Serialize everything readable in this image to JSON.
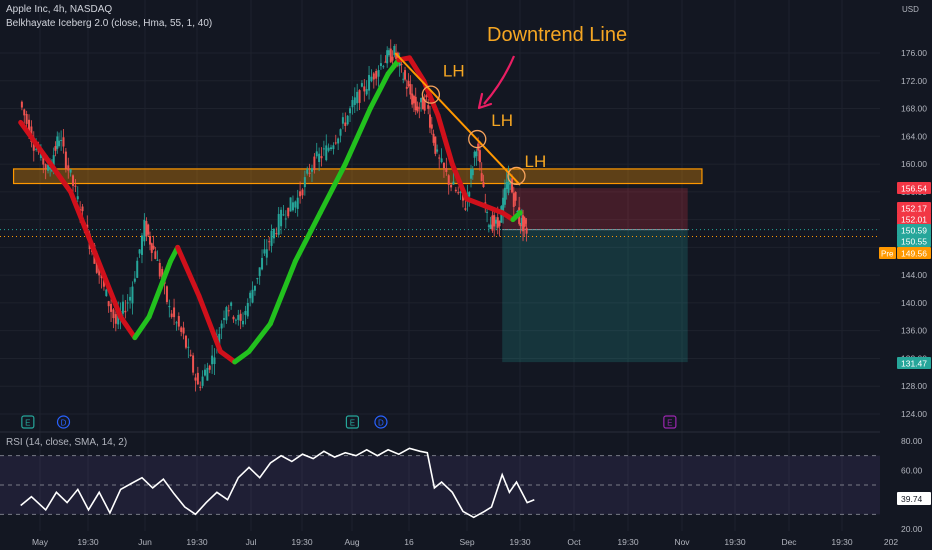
{
  "header": {
    "symbol_line": "Apple Inc, 4h, NASDAQ",
    "indicator_line": "Belkhayate Iceberg 2.0 (close, Hma, 55, 1, 40)",
    "currency": "USD"
  },
  "annotations": {
    "trend_title": "Downtrend Line",
    "lh_labels": [
      "LH",
      "LH",
      "LH"
    ]
  },
  "events": [
    "E",
    "D",
    "E",
    "D",
    "E"
  ],
  "rsi_panel": {
    "label": "RSI (14, close, SMA, 14, 2)",
    "value": "39.74"
  },
  "price_tags": [
    {
      "text": "156.54",
      "price": 156.54,
      "color": "#f23645"
    },
    {
      "text": "152.17",
      "price": 152.17,
      "color": "#f23645"
    },
    {
      "text": "152.01",
      "price": 152.01,
      "color": "#f23645"
    },
    {
      "text": "150.59",
      "price": 150.59,
      "color": "#26a69a"
    },
    {
      "text": "150.55",
      "price": 150.55,
      "color": "#26a69a"
    },
    {
      "text": "149.56",
      "price": 149.56,
      "color": "#ff9800",
      "prefix": "Pre"
    },
    {
      "text": "131.47",
      "price": 131.47,
      "color": "#26a69a"
    }
  ],
  "chart_data": {
    "type": "line",
    "y_ticks": [
      124,
      128,
      132,
      136,
      140,
      144,
      148,
      152,
      156,
      160,
      164,
      168,
      172,
      176
    ],
    "y_tick_labels": [
      "124.00",
      "128.00",
      "132.00",
      "136.00",
      "140.00",
      "144.00",
      "148.00",
      "152.00",
      "156.00",
      "160.00",
      "164.00",
      "168.00",
      "172.00",
      "176.00"
    ],
    "ylim": [
      121,
      180
    ],
    "x_tick_labels": [
      "May",
      "19:30",
      "Jun",
      "19:30",
      "Jul",
      "19:30",
      "Aug",
      "16",
      "Sep",
      "19:30",
      "Oct",
      "19:30",
      "Nov",
      "19:30",
      "Dec",
      "19:30",
      "202"
    ],
    "close": [
      {
        "date": "2023-05-01",
        "p": 169
      },
      {
        "date": "2023-05-05",
        "p": 163
      },
      {
        "date": "2023-05-09",
        "p": 159
      },
      {
        "date": "2023-05-12",
        "p": 164
      },
      {
        "date": "2023-05-16",
        "p": 157
      },
      {
        "date": "2023-05-20",
        "p": 150
      },
      {
        "date": "2023-05-24",
        "p": 143
      },
      {
        "date": "2023-05-28",
        "p": 137
      },
      {
        "date": "2023-06-01",
        "p": 141
      },
      {
        "date": "2023-06-05",
        "p": 151
      },
      {
        "date": "2023-06-08",
        "p": 147
      },
      {
        "date": "2023-06-12",
        "p": 139
      },
      {
        "date": "2023-06-16",
        "p": 135
      },
      {
        "date": "2023-06-20",
        "p": 128
      },
      {
        "date": "2023-06-24",
        "p": 132
      },
      {
        "date": "2023-06-28",
        "p": 140
      },
      {
        "date": "2023-07-02",
        "p": 137
      },
      {
        "date": "2023-07-06",
        "p": 143
      },
      {
        "date": "2023-07-10",
        "p": 149
      },
      {
        "date": "2023-07-14",
        "p": 153
      },
      {
        "date": "2023-07-18",
        "p": 155
      },
      {
        "date": "2023-07-22",
        "p": 160
      },
      {
        "date": "2023-07-26",
        "p": 162
      },
      {
        "date": "2023-07-30",
        "p": 165
      },
      {
        "date": "2023-08-03",
        "p": 169
      },
      {
        "date": "2023-08-07",
        "p": 172
      },
      {
        "date": "2023-08-11",
        "p": 175
      },
      {
        "date": "2023-08-14",
        "p": 176
      },
      {
        "date": "2023-08-17",
        "p": 172
      },
      {
        "date": "2023-08-20",
        "p": 168
      },
      {
        "date": "2023-08-23",
        "p": 169
      },
      {
        "date": "2023-08-26",
        "p": 161
      },
      {
        "date": "2023-08-30",
        "p": 157
      },
      {
        "date": "2023-09-03",
        "p": 154
      },
      {
        "date": "2023-09-06",
        "p": 163
      },
      {
        "date": "2023-09-09",
        "p": 152
      },
      {
        "date": "2023-09-12",
        "p": 151
      },
      {
        "date": "2023-09-15",
        "p": 158
      },
      {
        "date": "2023-09-18",
        "p": 152
      },
      {
        "date": "2023-09-20",
        "p": 150.55
      }
    ],
    "hma_series": [
      {
        "date": "2023-05-01",
        "p": 166,
        "trend": "down"
      },
      {
        "date": "2023-05-08",
        "p": 161,
        "trend": "down"
      },
      {
        "date": "2023-05-15",
        "p": 156,
        "trend": "down"
      },
      {
        "date": "2023-05-22",
        "p": 147,
        "trend": "down"
      },
      {
        "date": "2023-05-29",
        "p": 138,
        "trend": "down"
      },
      {
        "date": "2023-06-02",
        "p": 135,
        "trend": "down"
      },
      {
        "date": "2023-06-06",
        "p": 138,
        "trend": "up"
      },
      {
        "date": "2023-06-12",
        "p": 146,
        "trend": "up"
      },
      {
        "date": "2023-06-14",
        "p": 148,
        "trend": "up"
      },
      {
        "date": "2023-06-20",
        "p": 141,
        "trend": "down"
      },
      {
        "date": "2023-06-26",
        "p": 133,
        "trend": "down"
      },
      {
        "date": "2023-06-30",
        "p": 131.5,
        "trend": "down"
      },
      {
        "date": "2023-07-04",
        "p": 133,
        "trend": "up"
      },
      {
        "date": "2023-07-10",
        "p": 137,
        "trend": "up"
      },
      {
        "date": "2023-07-17",
        "p": 146,
        "trend": "up"
      },
      {
        "date": "2023-07-24",
        "p": 153,
        "trend": "up"
      },
      {
        "date": "2023-07-31",
        "p": 160,
        "trend": "up"
      },
      {
        "date": "2023-08-07",
        "p": 168,
        "trend": "up"
      },
      {
        "date": "2023-08-12",
        "p": 173,
        "trend": "up"
      },
      {
        "date": "2023-08-15",
        "p": 175,
        "trend": "up"
      },
      {
        "date": "2023-08-18",
        "p": 175.3,
        "trend": "down"
      },
      {
        "date": "2023-08-22",
        "p": 172,
        "trend": "down"
      },
      {
        "date": "2023-08-26",
        "p": 167,
        "trend": "down"
      },
      {
        "date": "2023-08-30",
        "p": 160,
        "trend": "down"
      },
      {
        "date": "2023-09-03",
        "p": 155,
        "trend": "down"
      },
      {
        "date": "2023-09-08",
        "p": 154,
        "trend": "down"
      },
      {
        "date": "2023-09-13",
        "p": 153,
        "trend": "down"
      },
      {
        "date": "2023-09-16",
        "p": 152,
        "trend": "down"
      },
      {
        "date": "2023-09-18",
        "p": 153,
        "trend": "up"
      }
    ],
    "downtrend_line": [
      {
        "date": "2023-08-14",
        "p": 176
      },
      {
        "date": "2023-09-18",
        "p": 157
      }
    ],
    "lh_points": [
      {
        "date": "2023-08-24",
        "p": 170
      },
      {
        "date": "2023-09-06",
        "p": 163.6
      },
      {
        "date": "2023-09-17",
        "p": 158.3
      }
    ],
    "resistance_zone": {
      "from": "2023-04-29",
      "to": "2023-11-08",
      "p_low": 157.2,
      "p_high": 159.3
    },
    "position": {
      "from": "2023-09-13",
      "to": "2023-11-04",
      "entry": 150.55,
      "stop": 156.54,
      "target": 131.47
    },
    "rsi": {
      "ylim": [
        20,
        80
      ],
      "ticks": [
        20,
        40,
        60,
        80
      ],
      "tick_labels": [
        "20.00",
        "40.00",
        "60.00",
        "80.00"
      ],
      "bands": [
        30,
        70
      ],
      "series": [
        {
          "date": "2023-05-01",
          "v": 36
        },
        {
          "date": "2023-05-04",
          "v": 42
        },
        {
          "date": "2023-05-08",
          "v": 33
        },
        {
          "date": "2023-05-11",
          "v": 45
        },
        {
          "date": "2023-05-14",
          "v": 38
        },
        {
          "date": "2023-05-17",
          "v": 47
        },
        {
          "date": "2023-05-20",
          "v": 33
        },
        {
          "date": "2023-05-23",
          "v": 45
        },
        {
          "date": "2023-05-26",
          "v": 31
        },
        {
          "date": "2023-05-29",
          "v": 47
        },
        {
          "date": "2023-06-01",
          "v": 51
        },
        {
          "date": "2023-06-04",
          "v": 55
        },
        {
          "date": "2023-06-07",
          "v": 48
        },
        {
          "date": "2023-06-10",
          "v": 54
        },
        {
          "date": "2023-06-13",
          "v": 44
        },
        {
          "date": "2023-06-16",
          "v": 35
        },
        {
          "date": "2023-06-19",
          "v": 30
        },
        {
          "date": "2023-06-22",
          "v": 38
        },
        {
          "date": "2023-06-25",
          "v": 45
        },
        {
          "date": "2023-06-28",
          "v": 40
        },
        {
          "date": "2023-07-01",
          "v": 55
        },
        {
          "date": "2023-07-04",
          "v": 62
        },
        {
          "date": "2023-07-07",
          "v": 55
        },
        {
          "date": "2023-07-10",
          "v": 65
        },
        {
          "date": "2023-07-13",
          "v": 70
        },
        {
          "date": "2023-07-16",
          "v": 66
        },
        {
          "date": "2023-07-19",
          "v": 71
        },
        {
          "date": "2023-07-22",
          "v": 68
        },
        {
          "date": "2023-07-25",
          "v": 73
        },
        {
          "date": "2023-07-28",
          "v": 69
        },
        {
          "date": "2023-07-31",
          "v": 72
        },
        {
          "date": "2023-08-03",
          "v": 70
        },
        {
          "date": "2023-08-06",
          "v": 74
        },
        {
          "date": "2023-08-09",
          "v": 70
        },
        {
          "date": "2023-08-12",
          "v": 74
        },
        {
          "date": "2023-08-15",
          "v": 71
        },
        {
          "date": "2023-08-18",
          "v": 75
        },
        {
          "date": "2023-08-21",
          "v": 73
        },
        {
          "date": "2023-08-23",
          "v": 72
        },
        {
          "date": "2023-08-25",
          "v": 48
        },
        {
          "date": "2023-08-27",
          "v": 52
        },
        {
          "date": "2023-08-30",
          "v": 45
        },
        {
          "date": "2023-09-02",
          "v": 32
        },
        {
          "date": "2023-09-05",
          "v": 28
        },
        {
          "date": "2023-09-08",
          "v": 32
        },
        {
          "date": "2023-09-10",
          "v": 35
        },
        {
          "date": "2023-09-13",
          "v": 57
        },
        {
          "date": "2023-09-15",
          "v": 45
        },
        {
          "date": "2023-09-17",
          "v": 52
        },
        {
          "date": "2023-09-20",
          "v": 38
        },
        {
          "date": "2023-09-22",
          "v": 40
        }
      ]
    }
  }
}
